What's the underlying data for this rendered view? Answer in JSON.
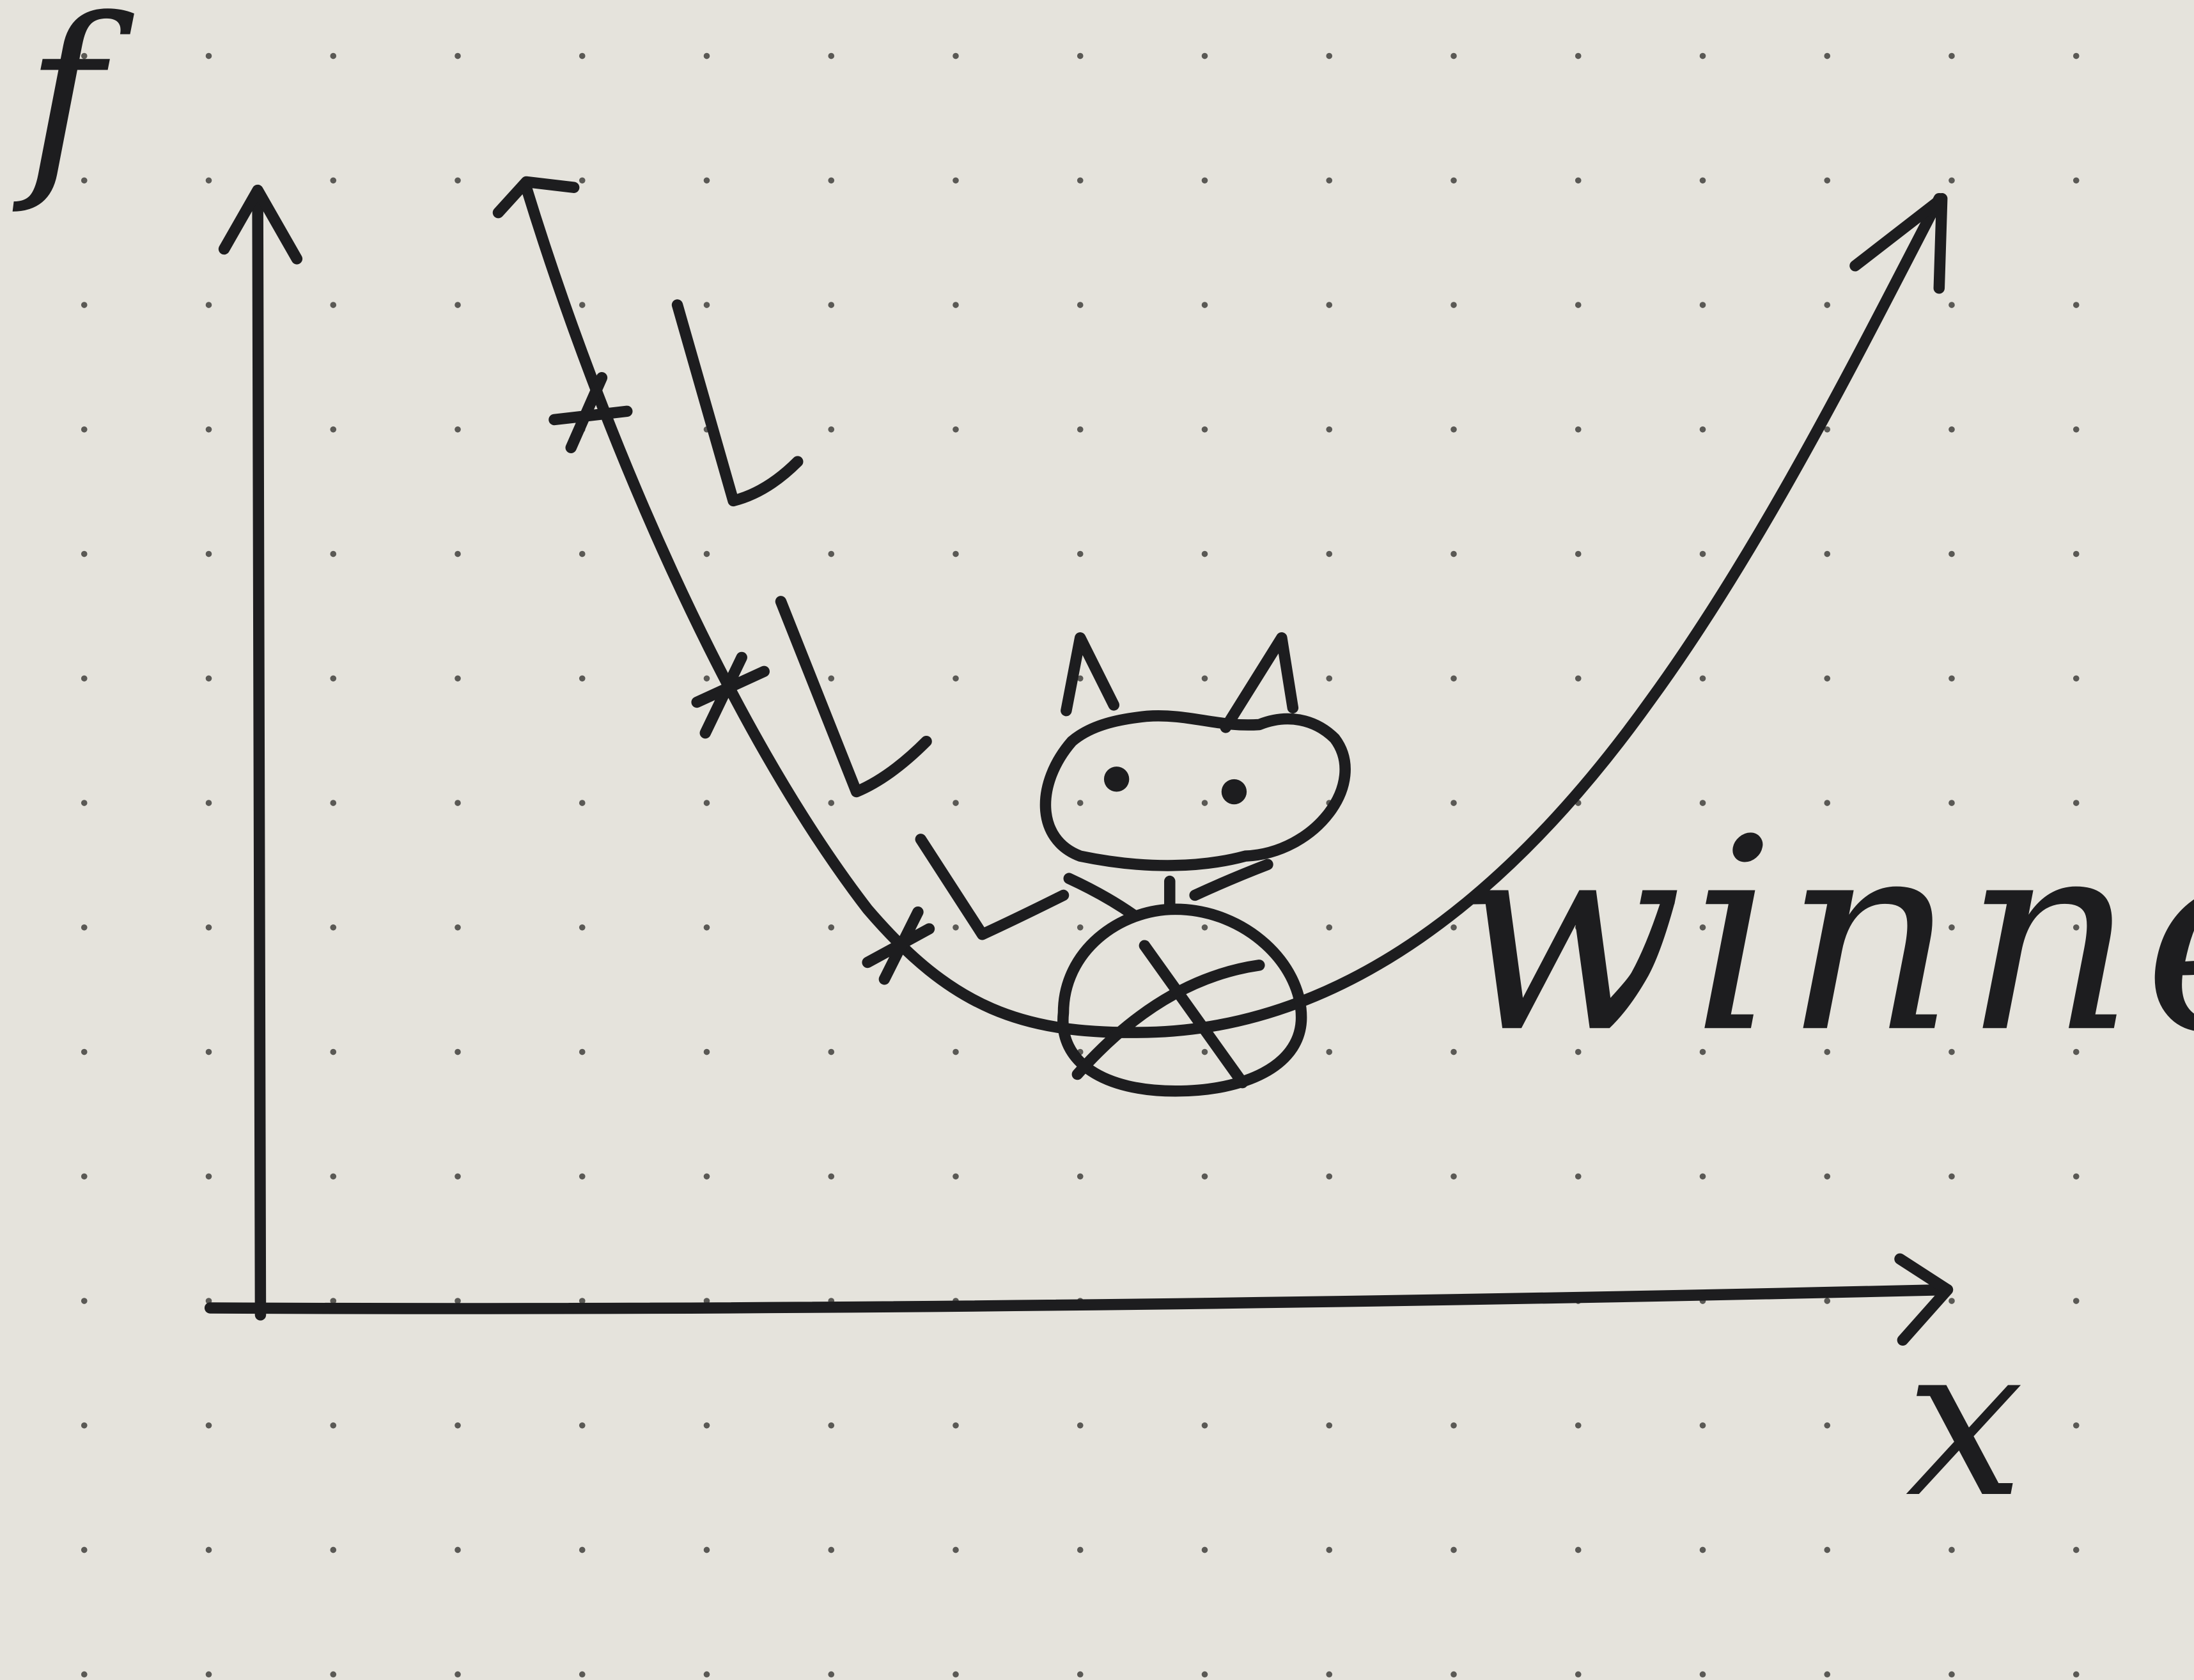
{
  "diagram": {
    "y_axis_label": "f",
    "x_axis_label": "x",
    "annotation": "winner!",
    "step_markers": 3,
    "mascot": "cat"
  },
  "colors": {
    "paper": "#e5e3dc",
    "ink": "#1d1d1f",
    "dot": "#5a5955"
  }
}
